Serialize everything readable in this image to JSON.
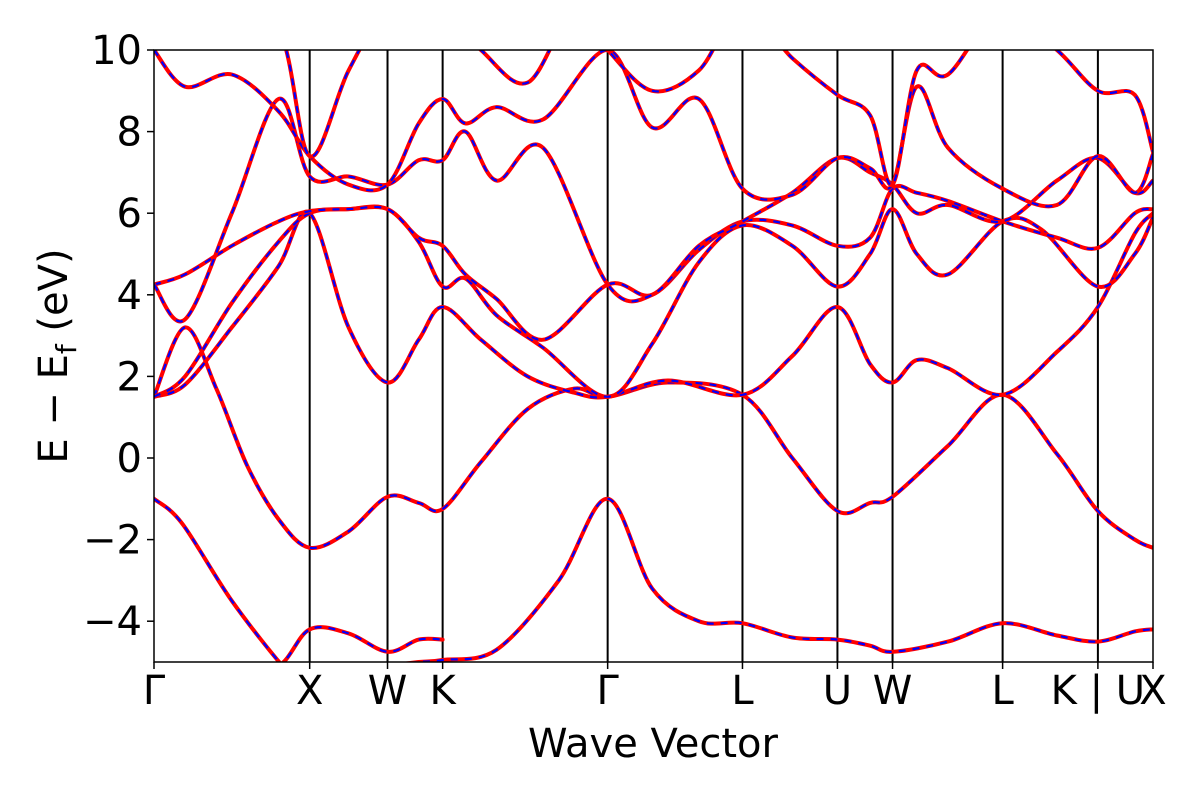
{
  "chart_data": {
    "type": "line",
    "xlabel": "Wave Vector",
    "ylabel": "E − E",
    "ylabel_sub": "f",
    "ylabel_unit": " (eV)",
    "ylim": [
      -5,
      10
    ],
    "yticks": [
      -4,
      -2,
      0,
      2,
      4,
      6,
      8,
      10
    ],
    "ytick_labels": [
      "−4",
      "−2",
      "0",
      "2",
      "4",
      "6",
      "8",
      "10"
    ],
    "grid": false,
    "kpoints": [
      {
        "label": "Γ",
        "pos": 0.0
      },
      {
        "label": "X",
        "pos": 1.0
      },
      {
        "label": "W",
        "pos": 1.5
      },
      {
        "label": "K",
        "pos": 1.854
      },
      {
        "label": "Γ",
        "pos": 2.914
      },
      {
        "label": "L",
        "pos": 3.78
      },
      {
        "label": "U",
        "pos": 4.39
      },
      {
        "label": "W",
        "pos": 4.744
      },
      {
        "label": "L",
        "pos": 5.451
      },
      {
        "label": "K | U",
        "pos": 6.063
      },
      {
        "label": "X",
        "pos": 6.417
      }
    ],
    "series_colors": {
      "bands": "#ff0000",
      "overlay": "#0000ff"
    },
    "bands": [
      {
        "x": [
          0,
          0.18,
          0.5,
          0.85,
          1.0,
          1.25,
          1.5,
          1.7,
          1.854,
          2.2,
          2.6,
          2.914,
          3.2,
          3.5,
          3.78,
          4.1,
          4.39,
          4.6,
          4.744,
          5.1,
          5.451,
          5.8,
          6.063,
          6.3,
          6.417
        ],
        "y": [
          -1.0,
          -1.6,
          -3.5,
          -5.2,
          -5.6,
          -5.3,
          -5.1,
          -5.0,
          -4.95,
          -4.7,
          -3.0,
          -1.0,
          -3.2,
          -4.0,
          -4.05,
          -4.4,
          -4.45,
          -4.6,
          -4.75,
          -4.5,
          -4.05,
          -4.35,
          -4.5,
          -4.25,
          -4.2
        ]
      },
      {
        "x": [
          0,
          0.2,
          0.5,
          0.8,
          1.0,
          1.25,
          1.5,
          1.7,
          1.854
        ],
        "y": [
          -5.8,
          -5.6,
          -5.3,
          -5.1,
          -4.2,
          -4.3,
          -4.75,
          -4.45,
          -4.45
        ]
      },
      {
        "x": [
          0,
          0.2,
          0.4,
          0.6,
          0.8,
          1.0,
          1.25,
          1.5,
          1.7,
          1.854,
          2.1,
          2.4,
          2.7,
          2.914,
          3.3,
          3.78,
          4.1,
          4.39,
          4.6,
          4.744,
          5.1,
          5.451,
          5.8,
          6.063,
          6.3,
          6.417
        ],
        "y": [
          1.5,
          3.2,
          1.7,
          -0.2,
          -1.5,
          -2.2,
          -1.8,
          -0.95,
          -1.1,
          -1.25,
          -0.1,
          1.2,
          1.7,
          1.5,
          1.85,
          1.55,
          0.0,
          -1.3,
          -1.1,
          -0.95,
          0.3,
          1.55,
          0.1,
          -1.3,
          -2.0,
          -2.2
        ]
      },
      {
        "x": [
          0,
          0.2,
          0.5,
          0.8,
          1.0,
          1.25,
          1.5,
          1.7,
          1.854,
          2.1,
          2.4,
          2.7,
          2.914,
          3.3,
          3.78,
          4.1,
          4.39,
          4.6,
          4.744,
          4.9,
          5.1,
          5.451,
          5.8,
          6.063,
          6.3,
          6.417
        ],
        "y": [
          1.5,
          1.8,
          3.2,
          4.7,
          6.0,
          3.2,
          1.85,
          2.9,
          3.7,
          2.9,
          2.0,
          1.6,
          1.5,
          1.9,
          1.55,
          2.5,
          3.7,
          2.3,
          1.85,
          2.4,
          2.2,
          1.55,
          2.6,
          3.7,
          5.5,
          6.0
        ]
      },
      {
        "x": [
          0,
          0.2,
          0.5,
          0.8,
          1.0,
          1.25,
          1.5,
          1.7,
          1.854,
          2.0,
          2.2,
          2.5,
          2.914,
          3.2,
          3.5,
          3.78,
          4.1,
          4.39,
          4.6,
          4.744,
          4.9,
          5.1,
          5.451,
          5.7,
          6.063,
          6.3,
          6.417
        ],
        "y": [
          1.5,
          2.0,
          3.8,
          5.3,
          6.0,
          6.1,
          6.1,
          5.3,
          4.2,
          4.4,
          3.5,
          2.7,
          1.5,
          2.8,
          4.8,
          5.7,
          5.2,
          4.2,
          5.0,
          6.1,
          5.0,
          4.5,
          5.8,
          5.6,
          4.2,
          5.0,
          5.9
        ]
      },
      {
        "x": [
          0,
          0.2,
          0.5,
          0.8,
          1.0,
          1.25,
          1.5,
          1.7,
          1.854,
          2.0,
          2.2,
          2.5,
          2.914,
          3.2,
          3.5,
          3.78,
          4.1,
          4.39,
          4.6,
          4.744,
          4.9,
          5.1,
          5.451,
          5.8,
          6.063,
          6.3,
          6.417
        ],
        "y": [
          4.25,
          4.5,
          5.2,
          5.8,
          6.05,
          6.1,
          6.1,
          5.4,
          5.2,
          4.5,
          3.9,
          2.9,
          4.25,
          4.0,
          5.1,
          5.8,
          5.7,
          5.2,
          5.4,
          6.6,
          6.5,
          6.3,
          5.8,
          5.4,
          5.15,
          6.0,
          6.1
        ]
      },
      {
        "x": [
          0,
          0.2,
          0.5,
          0.8,
          1.0,
          1.25,
          1.5,
          1.7,
          1.854,
          2.0,
          2.2,
          2.5,
          2.914,
          3.2,
          3.5,
          3.78,
          4.1,
          4.39,
          4.6,
          4.744,
          4.9,
          5.1,
          5.451,
          5.8,
          6.063,
          6.3,
          6.417
        ],
        "y": [
          4.25,
          3.4,
          6.0,
          8.8,
          6.9,
          6.9,
          6.7,
          7.3,
          7.3,
          8.0,
          6.8,
          7.6,
          4.25,
          4.0,
          5.2,
          5.8,
          6.5,
          7.35,
          7.0,
          6.7,
          6.0,
          6.2,
          5.8,
          6.8,
          7.35,
          6.5,
          6.8
        ]
      },
      {
        "x": [
          0,
          0.2,
          0.5,
          0.8,
          1.0,
          1.25,
          1.5,
          1.7,
          1.854,
          2.0,
          2.2,
          2.5,
          2.914,
          3.2,
          3.5,
          3.78,
          4.1,
          4.39,
          4.6,
          4.744,
          4.9,
          5.1,
          5.451,
          5.8,
          6.063,
          6.3,
          6.417
        ],
        "y": [
          10.0,
          9.1,
          9.4,
          8.5,
          7.4,
          6.7,
          6.7,
          8.2,
          8.8,
          8.2,
          8.6,
          8.3,
          10.0,
          8.1,
          8.8,
          6.6,
          6.45,
          7.35,
          7.1,
          6.7,
          9.1,
          7.6,
          6.6,
          6.2,
          7.4,
          6.5,
          7.45
        ]
      },
      {
        "x": [
          0,
          0.4,
          0.8,
          1.0,
          1.25,
          1.5,
          1.7,
          1.854,
          2.1,
          2.4,
          2.7,
          2.914,
          3.2,
          3.5,
          3.78,
          4.1,
          4.39,
          4.6,
          4.744,
          4.9,
          5.1,
          5.451,
          5.8,
          6.063,
          6.3,
          6.417
        ],
        "y": [
          11.0,
          11.0,
          10.5,
          7.4,
          9.5,
          11.0,
          10.5,
          11.0,
          10.0,
          9.2,
          11.0,
          10.0,
          9.0,
          9.5,
          11.0,
          9.8,
          8.9,
          8.4,
          6.7,
          9.5,
          9.4,
          11.0,
          10.0,
          9.0,
          8.9,
          7.5
        ]
      }
    ]
  }
}
